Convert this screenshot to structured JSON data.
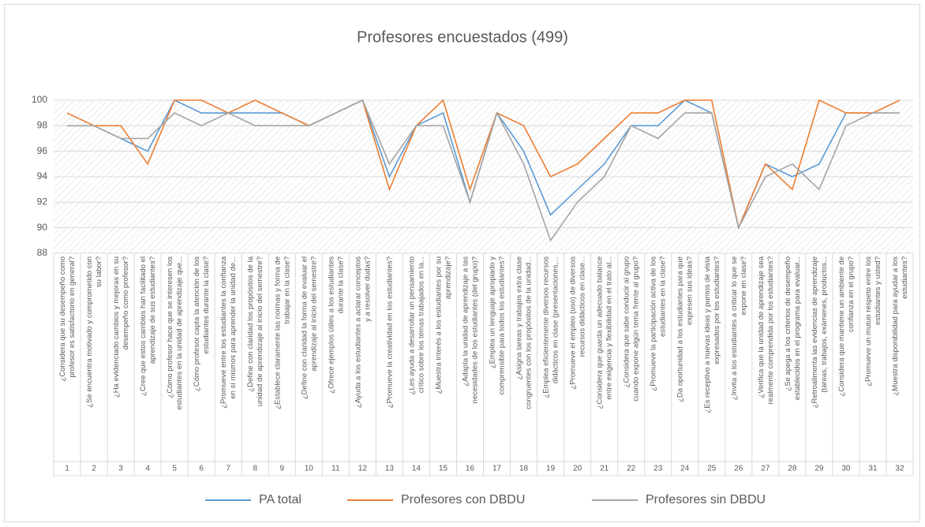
{
  "chart_data": {
    "type": "line",
    "title": "Profesores encuestados (499)",
    "categories": [
      "¿Considera que su desempeño como\nprofesor es satisfactorio en general?",
      "¿Se encuentra motivado y comprometido con\nsu labor?",
      "¿Ha evidenciado cambios y mejoras en su\ndesempeño como profesor?",
      "¿Cree que estos cambios han facilitado el\naprendizaje de sus estudiantes?",
      "¿Cómo profesor hace que se interesen los\nestudiantes en la unidad de aprendizaje que...",
      "¿Cómo profesor capta la atención de los\nestudiantes durante la clase?",
      "¿Promueve entre los estudiantes la confianza\nen sí mismos para aprender la unidad de...",
      "¿Define con claridad los propósitos de la\nunidad de aprendizaje al inicio del semestre?",
      "¿Establece claramente las normas y forma de\ntrabajar en la clase?",
      "¿Define con claridad la forma de evaluar el\naprendizaje al inicio del semestre?",
      "¿Ofrece ejemplos útiles a los estudiantes\ndurante la clase?",
      "¿Ayuda a los estudiantes a aclarar conceptos\ny a resolver dudas?",
      "¿Promueve la creatividad en los estudiantes?",
      "¿Les ayuda a desarrollar un pensamiento\ncrítico sobre los temas trabajados en la...",
      "¿Muestra interés a los estudiantes por su\naprendizaje?",
      "¿Adapta la unidad de aprendizaje a las\nnecesidades de los estudiantes (del grupo)?",
      "¿Emplea un lenguaje apropiado y\ncomprensible para todos los estudiantes?",
      "¿Asigna tareas y trabajos extra clase\ncongruentes con los propósitos de la unidad...",
      "¿Emplea eficientemente diversos recursos\ndidácticos en clase (presentaciones,...",
      "¿Promueve el empleo (uso) de diversos\nrecursos didácticos en clase...",
      "¿Considera que guarda un adecuado balance\nentre exigencia y flexibilidad en el trato al...",
      "¿Considera que sabe conducir al grupo\ncuando expone algún tema frente al grupo?",
      "¿Promueve la participación activa de los\nestudiantes en la clase?",
      "¿Da oportunidad a los estudiantes para que\nexpresen sus ideas?",
      "¿Es receptivo a nuevas ideas y puntos de vista\nexpresados por los estudiantes?",
      "¿Invita a los estudiantes a criticar lo que se\nexpone en clase?",
      "¿Verifica que la unidad de aprendizaje sea\nrealmente comprendida por los estudiantes?",
      "¿Se apega a los criterios de desempeño\nestablecidos en el programa para evaluar...",
      "¿Retroalimenta las evidencias de aprendizaje\n(tareas, trabajos, exámenes, productos...",
      "¿Considera que mantiene un ambiente de\nconfianza en el grupo?",
      "¿Promueve un mutuo respeto entre los\nestudiantes y usted?",
      "¿Muestra disponibilidad para ayudar a los\nestudiantes?"
    ],
    "category_numbers": [
      1,
      2,
      3,
      4,
      5,
      6,
      7,
      8,
      9,
      10,
      11,
      12,
      13,
      14,
      15,
      16,
      17,
      18,
      19,
      20,
      21,
      22,
      23,
      24,
      25,
      26,
      27,
      28,
      29,
      30,
      31,
      32
    ],
    "series": [
      {
        "name": "PA total",
        "color": "#5b9bd5",
        "values": [
          98,
          98,
          97,
          96,
          100,
          99,
          99,
          99,
          99,
          98,
          99,
          100,
          94,
          98,
          99,
          92,
          99,
          96,
          91,
          93,
          95,
          98,
          98,
          100,
          99,
          90,
          95,
          94,
          95,
          99,
          99,
          99
        ]
      },
      {
        "name": "Profesores con DBDU",
        "color": "#ed7d31",
        "values": [
          99,
          98,
          98,
          95,
          100,
          100,
          99,
          100,
          99,
          98,
          99,
          100,
          93,
          98,
          100,
          93,
          99,
          98,
          94,
          95,
          97,
          99,
          99,
          100,
          100,
          90,
          95,
          93,
          100,
          99,
          99,
          100
        ]
      },
      {
        "name": "Profesores sin DBDU",
        "color": "#a5a5a5",
        "values": [
          98,
          98,
          97,
          97,
          99,
          98,
          99,
          98,
          98,
          98,
          99,
          100,
          95,
          98,
          98,
          92,
          99,
          95,
          89,
          92,
          94,
          98,
          97,
          99,
          99,
          90,
          94,
          95,
          93,
          98,
          99,
          99
        ]
      }
    ],
    "ylim": [
      88,
      100
    ],
    "yticks": [
      88,
      90,
      92,
      94,
      96,
      98,
      100
    ],
    "grid": true,
    "legend": "bottom"
  }
}
